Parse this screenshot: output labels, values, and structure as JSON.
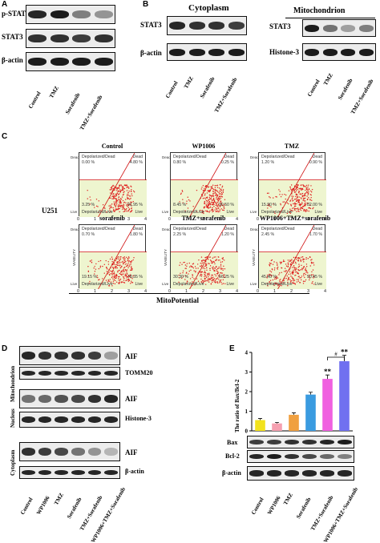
{
  "panels": {
    "a": "A",
    "b": "B",
    "c": "C",
    "d": "D",
    "e": "E"
  },
  "panel_a": {
    "rows": [
      "p-STAT3",
      "STAT3",
      "β-actin"
    ],
    "lanes": [
      "Control",
      "TMZ",
      "Sorafenib",
      "TMZ+Sorafenib"
    ],
    "pstat3_intensity": [
      0.9,
      0.95,
      0.5,
      0.4
    ]
  },
  "panel_b": {
    "cytoplasm_title": "Cytoplasm",
    "mito_title": "Mitochondrion",
    "cyto_rows": [
      "STAT3",
      "β-actin"
    ],
    "mito_rows": [
      "STAT3",
      "Histone-3"
    ],
    "lanes": [
      "Control",
      "TMZ",
      "Sorafenib",
      "TMZ+Sorafenib"
    ],
    "mito_stat3_intensity": [
      0.95,
      0.55,
      0.35,
      0.5
    ]
  },
  "panel_c": {
    "cell_line": "U251",
    "xlabel": "MitoPotential",
    "ylabel": "VIABILITY",
    "quad_top_left": "Depolarized/Dead",
    "quad_top_right": "Dead",
    "quad_bottom_left": "Depolarized/Live",
    "quad_bottom_right": "Live",
    "y_tick_top": "Dead",
    "y_tick_bottom": "Live",
    "x_ticks": [
      "0",
      "1",
      "2",
      "3",
      "4"
    ],
    "plots": [
      {
        "title": "Control",
        "tl": "0.00 %",
        "tr": "4.80 %",
        "bl": "3.25 %",
        "br": "91.95 %"
      },
      {
        "title": "WP1006",
        "tl": "0.80 %",
        "tr": "0.25 %",
        "bl": "8.45 %",
        "br": "90.50 %"
      },
      {
        "title": "TMZ",
        "tl": "1.20 %",
        "tr": "0.90 %",
        "bl": "15.90 %",
        "br": "82.00 %"
      },
      {
        "title": "sorafenib",
        "tl": "0.70 %",
        "tr": "1.80 %",
        "bl": "19.15 %",
        "br": "78.35 %"
      },
      {
        "title": "TMZ+sorafenib",
        "tl": "2.25 %",
        "tr": "1.20 %",
        "bl": "30.30 %",
        "br": "66.25 %"
      },
      {
        "title": "WP1006+TMZ+sorafenib",
        "tl": "2.45 %",
        "tr": "1.70 %",
        "bl": "45.40 %",
        "br": "50.45 %"
      }
    ]
  },
  "panel_d": {
    "sections": [
      "Mitochondrion",
      "Nucleus",
      "Cytoplasm"
    ],
    "rows": [
      "AIF",
      "TOMM20",
      "AIF",
      "Histone-3",
      "AIF",
      "β-actin"
    ],
    "lanes": [
      "Control",
      "WP1006",
      "TMZ",
      "Sorafenib",
      "TMZ+Sorafenib",
      "WP1006+TMZ+Sorafenib"
    ]
  },
  "panel_e": {
    "ylabel": "The ratio of Bax/Bcl-2",
    "rows": [
      "Bax",
      "Bcl-2",
      "β-actin"
    ],
    "lanes": [
      "Control",
      "WP1006",
      "TMZ",
      "Sorafenib",
      "TMZ+Sorafenib",
      "WP1006+TMZ+Sorafenib"
    ],
    "sig_star": "**",
    "sig_hash": "#"
  },
  "chart_data": {
    "type": "bar",
    "categories": [
      "Control",
      "WP1006",
      "TMZ",
      "Sorafenib",
      "TMZ+Sorafenib",
      "WP1006+TMZ+Sorafenib"
    ],
    "values": [
      0.55,
      0.38,
      0.82,
      1.85,
      2.65,
      3.55
    ],
    "errors": [
      0.08,
      0.05,
      0.1,
      0.12,
      0.2,
      0.3
    ],
    "colors": [
      "#f2e21c",
      "#f5a0b0",
      "#f0a040",
      "#3a9be0",
      "#f060e0",
      "#7070f0"
    ],
    "ylabel": "The ratio of Bax/Bcl-2",
    "ylim": [
      0,
      4
    ],
    "yticks": [
      "0",
      "1",
      "2",
      "3",
      "4"
    ]
  }
}
